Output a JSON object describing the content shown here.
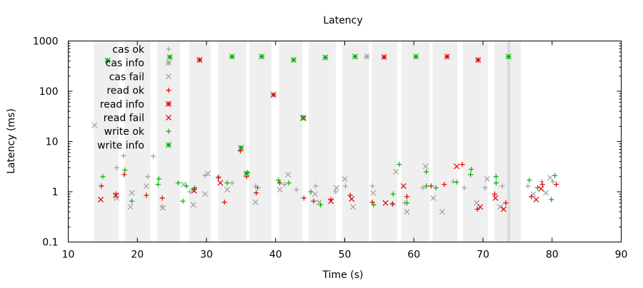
{
  "chart_data": {
    "type": "scatter",
    "title": "Latency",
    "xlabel": "Time (s)",
    "ylabel": "Latency (ms)",
    "xlim": [
      10,
      90
    ],
    "ylim": [
      0.1,
      1000
    ],
    "y_scale": "log",
    "x_ticks": [
      10,
      20,
      30,
      40,
      50,
      60,
      70,
      80,
      90
    ],
    "y_ticks": [
      0.1,
      1,
      10,
      100,
      1000
    ],
    "x_tick_labels": [
      "10",
      "20",
      "30",
      "40",
      "50",
      "60",
      "70",
      "80",
      "90"
    ],
    "y_tick_labels": [
      "0.1",
      "1",
      "10",
      "100",
      "1000"
    ],
    "legend_position": "top-left",
    "grid": false,
    "shaded_intervals": [
      [
        13.7,
        17.3
      ],
      [
        18.2,
        21.9
      ],
      [
        22.9,
        26.2
      ],
      [
        27.5,
        30.6
      ],
      [
        31.7,
        35.8
      ],
      [
        36.2,
        39.4
      ],
      [
        40.5,
        43.9
      ],
      [
        44.8,
        48.7
      ],
      [
        49.6,
        53.5
      ],
      [
        53.9,
        57.6
      ],
      [
        58.2,
        62.3
      ],
      [
        62.7,
        66.3
      ],
      [
        67.1,
        70.7
      ],
      [
        71.6,
        73.5
      ],
      [
        73.5,
        74.0
      ],
      [
        74.0,
        75.5
      ]
    ],
    "series": [
      {
        "name": "cas ok",
        "marker": "+",
        "color": "#a0a0a0",
        "points": [
          [
            17.0,
            3.0
          ],
          [
            18.0,
            5.2
          ],
          [
            21.5,
            2.0
          ],
          [
            22.3,
            5.1
          ],
          [
            23.6,
            0.5
          ],
          [
            27.6,
            1.0
          ],
          [
            29.8,
            2.1
          ],
          [
            31.8,
            2.0
          ],
          [
            33.7,
            1.5
          ],
          [
            37.1,
            1.3
          ],
          [
            41.3,
            1.4
          ],
          [
            43.0,
            1.1
          ],
          [
            45.8,
            1.3
          ],
          [
            48.7,
            1.0
          ],
          [
            50.1,
            1.3
          ],
          [
            54.0,
            1.3
          ],
          [
            57.0,
            0.55
          ],
          [
            58.7,
            0.6
          ],
          [
            61.3,
            1.2
          ],
          [
            65.7,
            1.6
          ],
          [
            67.3,
            1.2
          ],
          [
            70.3,
            1.2
          ],
          [
            72.8,
            1.3
          ],
          [
            76.5,
            1.3
          ],
          [
            78.5,
            1.6
          ],
          [
            80.1,
            1.6
          ]
        ]
      },
      {
        "name": "cas info",
        "marker": "*",
        "color": "#a0a0a0",
        "points": [
          [
            53.2,
            490
          ]
        ]
      },
      {
        "name": "cas fail",
        "marker": "x",
        "color": "#a0a0a0",
        "points": [
          [
            13.8,
            21
          ],
          [
            17.0,
            0.75
          ],
          [
            19.0,
            0.5
          ],
          [
            19.2,
            0.95
          ],
          [
            21.3,
            1.3
          ],
          [
            23.7,
            0.48
          ],
          [
            26.7,
            1.4
          ],
          [
            28.1,
            0.55
          ],
          [
            29.8,
            0.9
          ],
          [
            30.2,
            2.3
          ],
          [
            33.0,
            1.1
          ],
          [
            37.1,
            0.62
          ],
          [
            40.6,
            1.1
          ],
          [
            41.8,
            2.2
          ],
          [
            45.7,
            0.9
          ],
          [
            46.3,
            0.62
          ],
          [
            48.8,
            1.2
          ],
          [
            50.0,
            1.8
          ],
          [
            51.2,
            0.5
          ],
          [
            54.1,
            0.95
          ],
          [
            57.4,
            2.5
          ],
          [
            59.0,
            0.4
          ],
          [
            61.7,
            3.2
          ],
          [
            62.8,
            0.75
          ],
          [
            64.1,
            0.4
          ],
          [
            69.1,
            0.6
          ],
          [
            70.6,
            1.8
          ],
          [
            72.5,
            0.5
          ],
          [
            77.3,
            0.9
          ],
          [
            79.1,
            0.95
          ],
          [
            79.7,
            1.9
          ]
        ]
      },
      {
        "name": "read ok",
        "marker": "+",
        "color": "#e00000",
        "points": [
          [
            14.8,
            1.3
          ],
          [
            16.9,
            0.9
          ],
          [
            18.1,
            2.2
          ],
          [
            21.3,
            0.85
          ],
          [
            23.6,
            0.75
          ],
          [
            28.2,
            1.1
          ],
          [
            31.7,
            1.9
          ],
          [
            32.6,
            0.62
          ],
          [
            34.9,
            6.5
          ],
          [
            35.8,
            2.0
          ],
          [
            37.2,
            0.95
          ],
          [
            40.6,
            1.5
          ],
          [
            44.1,
            0.75
          ],
          [
            45.5,
            0.65
          ],
          [
            48.0,
            0.7
          ],
          [
            50.8,
            0.85
          ],
          [
            54.0,
            0.62
          ],
          [
            56.9,
            0.58
          ],
          [
            59.0,
            0.8
          ],
          [
            62.5,
            1.3
          ],
          [
            64.4,
            1.4
          ],
          [
            67.0,
            3.5
          ],
          [
            69.2,
            0.45
          ],
          [
            71.7,
            0.9
          ],
          [
            73.3,
            0.6
          ],
          [
            77.0,
            0.8
          ],
          [
            78.6,
            1.4
          ],
          [
            80.6,
            1.4
          ]
        ]
      },
      {
        "name": "read info",
        "marker": "*",
        "color": "#e00000",
        "points": [
          [
            29.0,
            420
          ],
          [
            39.7,
            85
          ],
          [
            55.7,
            480
          ],
          [
            64.8,
            490
          ],
          [
            69.3,
            420
          ]
        ]
      },
      {
        "name": "read fail",
        "marker": "x",
        "color": "#e00000",
        "points": [
          [
            14.7,
            0.7
          ],
          [
            16.9,
            0.85
          ],
          [
            28.2,
            1.05
          ],
          [
            32.0,
            1.5
          ],
          [
            44.0,
            29
          ],
          [
            48.0,
            0.65
          ],
          [
            51.0,
            0.72
          ],
          [
            55.9,
            0.6
          ],
          [
            58.5,
            1.3
          ],
          [
            66.2,
            3.2
          ],
          [
            69.6,
            0.5
          ],
          [
            71.8,
            0.75
          ],
          [
            73.0,
            0.45
          ],
          [
            77.7,
            0.7
          ],
          [
            78.4,
            1.15
          ]
        ]
      },
      {
        "name": "write ok",
        "marker": "+",
        "color": "#00b000",
        "points": [
          [
            15.0,
            2.0
          ],
          [
            18.2,
            2.7
          ],
          [
            19.2,
            0.65
          ],
          [
            23.1,
            1.8
          ],
          [
            23.0,
            1.4
          ],
          [
            25.9,
            1.5
          ],
          [
            26.6,
            0.65
          ],
          [
            27.1,
            1.3
          ],
          [
            28.3,
            1.2
          ],
          [
            33.0,
            1.5
          ],
          [
            35.9,
            2.4
          ],
          [
            37.4,
            1.2
          ],
          [
            40.4,
            1.7
          ],
          [
            41.9,
            1.5
          ],
          [
            45.1,
            1.0
          ],
          [
            46.5,
            0.55
          ],
          [
            54.2,
            0.55
          ],
          [
            57.0,
            0.9
          ],
          [
            57.9,
            3.5
          ],
          [
            59.0,
            0.6
          ],
          [
            61.8,
            2.5
          ],
          [
            61.8,
            1.3
          ],
          [
            63.2,
            1.2
          ],
          [
            66.2,
            1.55
          ],
          [
            68.2,
            2.2
          ],
          [
            68.3,
            2.8
          ],
          [
            71.9,
            2.0
          ],
          [
            71.9,
            1.5
          ],
          [
            76.7,
            1.7
          ],
          [
            77.9,
            1.2
          ],
          [
            79.9,
            0.7
          ],
          [
            80.4,
            2.1
          ]
        ]
      },
      {
        "name": "write info",
        "marker": "*",
        "color": "#00b000",
        "points": [
          [
            15.7,
            410
          ],
          [
            24.7,
            480
          ],
          [
            33.7,
            490
          ],
          [
            38.0,
            490
          ],
          [
            42.6,
            420
          ],
          [
            47.2,
            470
          ],
          [
            51.5,
            490
          ],
          [
            60.3,
            490
          ],
          [
            73.7,
            490
          ],
          [
            35.0,
            7.5
          ],
          [
            35.8,
            2.3
          ],
          [
            44.0,
            30
          ]
        ]
      }
    ]
  }
}
